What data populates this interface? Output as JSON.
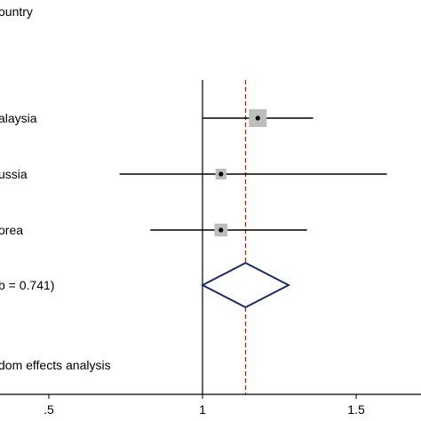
{
  "chart_data": {
    "type": "forest",
    "header": "ountry",
    "studies": [
      {
        "label": "alaysia",
        "estimate": 1.18,
        "ci_low": 1.0,
        "ci_high": 1.36,
        "weight_box": 1.0
      },
      {
        "label": "ussia",
        "estimate": 1.06,
        "ci_low": 0.73,
        "ci_high": 1.6,
        "weight_box": 0.35
      },
      {
        "label": "orea",
        "estimate": 1.06,
        "ci_low": 0.83,
        "ci_high": 1.34,
        "weight_box": 0.55
      }
    ],
    "overall": {
      "label": "b = 0.741)",
      "estimate": 1.14,
      "ci_low": 1.0,
      "ci_high": 1.28
    },
    "footer": "dom effects analysis",
    "null_value": 1,
    "x_ticks": [
      0.5,
      1,
      1.5
    ],
    "x_tick_labels": [
      ".5",
      "1",
      "1.5"
    ],
    "xlim": [
      0.4,
      1.75
    ],
    "colors": {
      "null_line": "#000000",
      "pooled_line": "#8b2b1a",
      "diamond": "#1c2b6b",
      "box": "#bdbdbd",
      "ci": "#000000"
    }
  }
}
